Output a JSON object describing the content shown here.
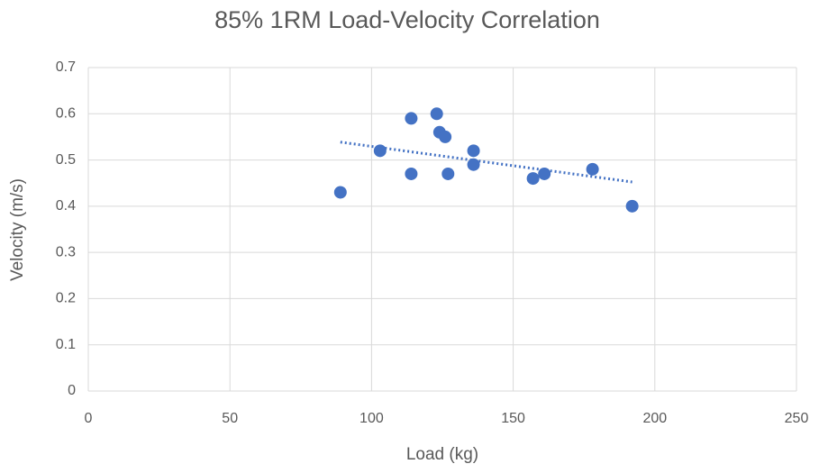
{
  "chart_data": {
    "type": "scatter",
    "title": "85% 1RM Load-Velocity Correlation",
    "x_label": "Load (kg)",
    "y_label": "Velocity (m/s)",
    "series": [
      {
        "color": "#4472c4",
        "x": [
          89,
          103,
          114,
          114,
          123,
          124,
          126,
          127,
          136,
          136,
          157,
          161,
          178,
          192
        ],
        "values": [
          0.43,
          0.52,
          0.59,
          0.47,
          0.6,
          0.56,
          0.55,
          0.47,
          0.52,
          0.49,
          0.46,
          0.47,
          0.48,
          0.4
        ]
      }
    ],
    "trendline": "linear",
    "xlim": [
      0,
      250
    ],
    "xticks": [
      0,
      50,
      100,
      150,
      200,
      250
    ],
    "ylim": [
      0,
      0.7
    ],
    "yticks": [
      0,
      0.1,
      0.2,
      0.3,
      0.4,
      0.5,
      0.6,
      0.7
    ],
    "grid": true
  }
}
